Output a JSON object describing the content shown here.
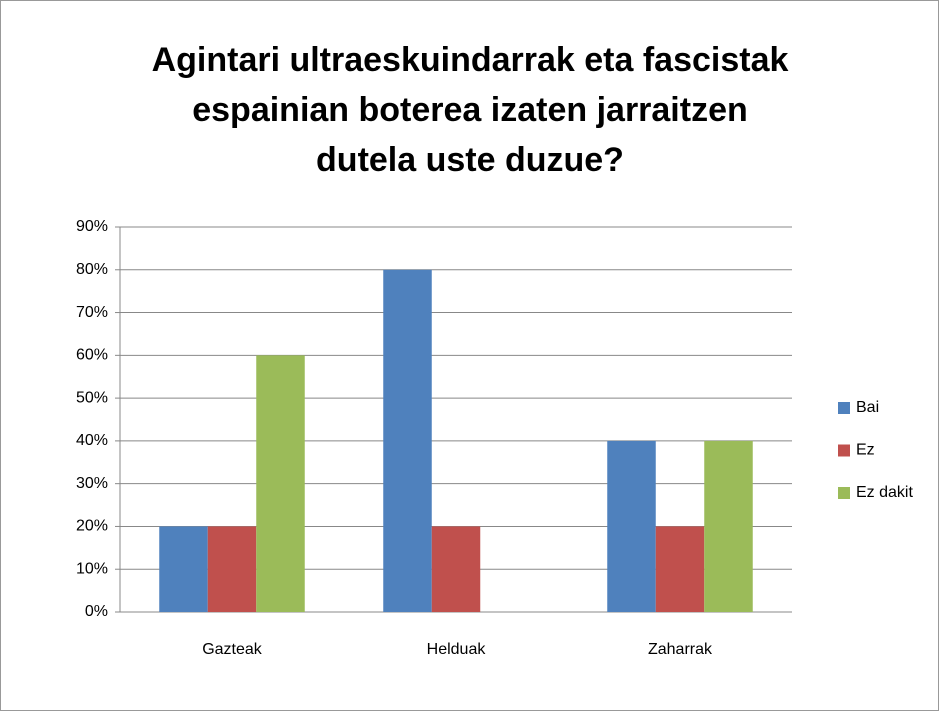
{
  "chart_data": {
    "type": "bar",
    "title": [
      "Agintari ultraeskuindarrak eta fascistak",
      "espainian boterea izaten jarraitzen",
      "dutela uste duzue?"
    ],
    "categories": [
      "Gazteak",
      "Helduak",
      "Zaharrak"
    ],
    "series": [
      {
        "name": "Bai",
        "color": "#4f81bd",
        "values": [
          20,
          80,
          40
        ]
      },
      {
        "name": "Ez",
        "color": "#c0504d",
        "values": [
          20,
          20,
          20
        ]
      },
      {
        "name": "Ez dakit",
        "color": "#9bbb59",
        "values": [
          60,
          0,
          40
        ]
      }
    ],
    "ylim": [
      0,
      90
    ],
    "yticks": [
      {
        "value": 0,
        "label": "0%"
      },
      {
        "value": 10,
        "label": "10%"
      },
      {
        "value": 20,
        "label": "20%"
      },
      {
        "value": 30,
        "label": "30%"
      },
      {
        "value": 40,
        "label": "40%"
      },
      {
        "value": 50,
        "label": "50%"
      },
      {
        "value": 60,
        "label": "60%"
      },
      {
        "value": 70,
        "label": "70%"
      },
      {
        "value": 80,
        "label": "80%"
      },
      {
        "value": 90,
        "label": "90%"
      }
    ],
    "grid": true,
    "legend": "right"
  }
}
